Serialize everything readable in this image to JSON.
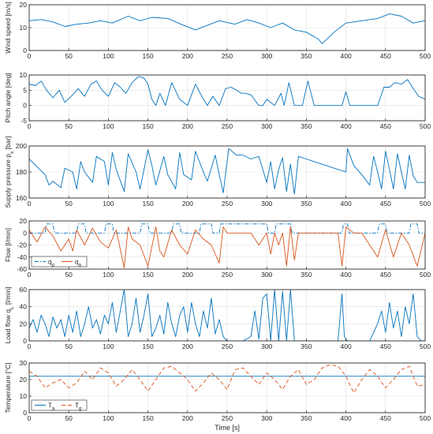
{
  "chart_data": [
    {
      "type": "line",
      "ylabel": "Wind speed [m/s]",
      "xlim": [
        0,
        500
      ],
      "ylim": [
        0,
        20
      ],
      "xticks": [
        0,
        50,
        100,
        150,
        200,
        250,
        300,
        350,
        400,
        450,
        500
      ],
      "yticks": [
        0,
        10,
        20
      ],
      "grid": true,
      "series": [
        {
          "color": "#0072BD",
          "style": "solid",
          "x": [
            0,
            15,
            30,
            45,
            60,
            75,
            90,
            105,
            125,
            140,
            155,
            175,
            195,
            210,
            225,
            240,
            260,
            275,
            290,
            305,
            320,
            335,
            350,
            365,
            370,
            385,
            400,
            420,
            440,
            455,
            470,
            485,
            500
          ],
          "y": [
            13,
            13.5,
            12.5,
            10.5,
            11.5,
            12,
            13,
            12,
            15,
            13,
            14.5,
            14,
            11,
            9,
            11,
            13,
            11.5,
            13.5,
            12,
            10,
            12,
            9,
            8,
            5,
            3,
            8,
            12,
            13,
            14,
            16,
            15,
            12,
            13
          ]
        }
      ]
    },
    {
      "type": "line",
      "ylabel": "Pitch angle [deg]",
      "xlim": [
        0,
        500
      ],
      "ylim": [
        -5,
        10
      ],
      "xticks": [
        0,
        50,
        100,
        150,
        200,
        250,
        300,
        350,
        400,
        450,
        500
      ],
      "yticks": [
        -5,
        0,
        5,
        10
      ],
      "grid": true,
      "series": [
        {
          "color": "#0072BD",
          "style": "solid",
          "x": [
            0,
            8,
            15,
            22,
            30,
            38,
            45,
            55,
            62,
            70,
            78,
            85,
            92,
            100,
            108,
            115,
            122,
            130,
            138,
            145,
            150,
            155,
            160,
            165,
            172,
            180,
            190,
            200,
            210,
            218,
            225,
            232,
            240,
            248,
            255,
            262,
            268,
            272,
            280,
            290,
            295,
            300,
            310,
            318,
            322,
            328,
            335,
            340,
            345,
            352,
            360,
            370,
            380,
            390,
            395,
            400,
            405,
            415,
            440,
            448,
            455,
            462,
            470,
            478,
            485,
            492,
            500
          ],
          "y": [
            7,
            6.5,
            8,
            5,
            2.5,
            5,
            1,
            3.5,
            5.5,
            3,
            7,
            8,
            5,
            3,
            7.5,
            6,
            4,
            7.5,
            9.5,
            9,
            7,
            2,
            0,
            4,
            0,
            7.5,
            2,
            0,
            7,
            3,
            0,
            3,
            0,
            5.5,
            6,
            5,
            4,
            4,
            3.5,
            0,
            0,
            2,
            0,
            4,
            0,
            7.5,
            0,
            0,
            0,
            8,
            0,
            0,
            0,
            0,
            0,
            4.5,
            0,
            0,
            0,
            6,
            6,
            7.5,
            7,
            8.5,
            5.5,
            3,
            2
          ]
        }
      ]
    },
    {
      "type": "line",
      "ylabel": "Supply pressure p_s [bar]",
      "xlim": [
        0,
        500
      ],
      "ylim": [
        160,
        200
      ],
      "xticks": [
        0,
        50,
        100,
        150,
        200,
        250,
        300,
        350,
        400,
        450,
        500
      ],
      "yticks": [
        160,
        180,
        200
      ],
      "grid": true,
      "series": [
        {
          "color": "#0072BD",
          "style": "solid",
          "x": [
            0,
            10,
            20,
            25,
            30,
            40,
            45,
            55,
            60,
            65,
            70,
            80,
            85,
            95,
            100,
            105,
            110,
            120,
            125,
            135,
            140,
            150,
            155,
            160,
            170,
            175,
            185,
            190,
            195,
            205,
            210,
            220,
            225,
            235,
            240,
            245,
            252,
            262,
            270,
            280,
            290,
            300,
            305,
            310,
            315,
            320,
            325,
            330,
            335,
            340,
            350,
            360,
            380,
            400,
            402,
            410,
            420,
            430,
            435,
            440,
            445,
            450,
            455,
            460,
            465,
            470,
            475,
            480,
            485,
            490,
            500
          ],
          "y": [
            190,
            184,
            178,
            170,
            173,
            168,
            183,
            180,
            167,
            188,
            180,
            172,
            192,
            188,
            170,
            195,
            182,
            165,
            194,
            180,
            167,
            197,
            185,
            170,
            192,
            178,
            167,
            195,
            178,
            174,
            196,
            180,
            173,
            193,
            178,
            164,
            198,
            193,
            193,
            190,
            192,
            172,
            188,
            167,
            182,
            191,
            165,
            186,
            163,
            192,
            190,
            188,
            184,
            180,
            198,
            185,
            178,
            170,
            192,
            180,
            167,
            196,
            182,
            167,
            194,
            180,
            167,
            193,
            177,
            172,
            172
          ]
        }
      ]
    },
    {
      "type": "line",
      "ylabel": "Flow [l/min]",
      "xlim": [
        0,
        500
      ],
      "ylim": [
        -60,
        20
      ],
      "xticks": [
        0,
        50,
        100,
        150,
        200,
        250,
        300,
        350,
        400,
        450,
        500
      ],
      "yticks": [
        -60,
        -40,
        -20,
        0,
        20
      ],
      "grid": true,
      "legend": {
        "position": "bottom-left",
        "entries": [
          "q_p",
          "q_a"
        ]
      },
      "series": [
        {
          "name": "q_p",
          "color": "#0072BD",
          "style": "dashdot",
          "x": [
            0,
            20,
            22,
            30,
            32,
            60,
            62,
            70,
            72,
            95,
            97,
            105,
            107,
            140,
            142,
            150,
            152,
            180,
            182,
            190,
            192,
            215,
            217,
            230,
            232,
            240,
            242,
            300,
            302,
            310,
            312,
            330,
            332,
            395,
            397,
            402,
            404,
            440,
            442,
            450,
            452,
            480,
            482,
            490,
            492,
            500
          ],
          "y": [
            0,
            0,
            15,
            15,
            0,
            0,
            15,
            15,
            0,
            0,
            15,
            15,
            0,
            0,
            15,
            15,
            0,
            0,
            15,
            15,
            0,
            0,
            15,
            15,
            0,
            0,
            15,
            15,
            0,
            0,
            15,
            15,
            0,
            0,
            15,
            15,
            0,
            0,
            15,
            15,
            0,
            0,
            15,
            15,
            0,
            0
          ]
        },
        {
          "name": "q_a",
          "color": "#D95319",
          "style": "solid",
          "x": [
            0,
            10,
            20,
            30,
            40,
            50,
            55,
            60,
            70,
            80,
            90,
            100,
            110,
            120,
            125,
            130,
            140,
            150,
            160,
            165,
            170,
            180,
            190,
            200,
            210,
            220,
            230,
            240,
            245,
            250,
            255,
            260,
            270,
            280,
            290,
            300,
            305,
            310,
            315,
            320,
            325,
            330,
            335,
            340,
            350,
            360,
            370,
            380,
            390,
            395,
            400,
            410,
            420,
            430,
            440,
            450,
            460,
            470,
            480,
            490,
            500
          ],
          "y": [
            5,
            -15,
            10,
            -5,
            -30,
            -10,
            -30,
            5,
            -20,
            8,
            -15,
            -25,
            5,
            -58,
            10,
            -10,
            -20,
            -55,
            10,
            -30,
            -40,
            5,
            -20,
            -35,
            5,
            -10,
            -20,
            -50,
            10,
            0,
            0,
            0,
            0,
            0,
            -20,
            0,
            -35,
            0,
            -20,
            0,
            -55,
            10,
            -45,
            0,
            0,
            0,
            0,
            0,
            0,
            -55,
            10,
            0,
            0,
            -20,
            -40,
            5,
            -40,
            0,
            -20,
            -55,
            0
          ]
        }
      ]
    },
    {
      "type": "line",
      "ylabel": "Load flow q_L [l/min]",
      "xlim": [
        0,
        500
      ],
      "ylim": [
        0,
        60
      ],
      "xticks": [
        0,
        50,
        100,
        150,
        200,
        250,
        300,
        350,
        400,
        450,
        500
      ],
      "yticks": [
        0,
        20,
        40,
        60
      ],
      "grid": true,
      "series": [
        {
          "color": "#0072BD",
          "style": "solid",
          "x": [
            0,
            5,
            10,
            15,
            20,
            25,
            30,
            35,
            40,
            45,
            50,
            55,
            60,
            65,
            70,
            75,
            80,
            85,
            90,
            95,
            100,
            105,
            110,
            115,
            120,
            125,
            130,
            135,
            140,
            145,
            150,
            155,
            160,
            165,
            170,
            175,
            180,
            185,
            190,
            195,
            200,
            205,
            210,
            215,
            220,
            225,
            230,
            235,
            240,
            245,
            250,
            260,
            270,
            280,
            285,
            290,
            295,
            300,
            305,
            310,
            315,
            320,
            325,
            330,
            335,
            340,
            345,
            350,
            360,
            370,
            380,
            390,
            395,
            398,
            402,
            405,
            410,
            420,
            430,
            440,
            445,
            450,
            455,
            460,
            465,
            470,
            475,
            480,
            485,
            490,
            495,
            500
          ],
          "y": [
            15,
            25,
            10,
            30,
            20,
            5,
            28,
            15,
            25,
            5,
            30,
            10,
            35,
            5,
            20,
            40,
            15,
            25,
            8,
            30,
            20,
            45,
            10,
            35,
            60,
            5,
            20,
            50,
            10,
            30,
            55,
            5,
            15,
            30,
            8,
            45,
            20,
            5,
            30,
            40,
            10,
            45,
            20,
            5,
            35,
            15,
            50,
            8,
            25,
            5,
            0,
            0,
            0,
            5,
            35,
            2,
            50,
            55,
            0,
            60,
            0,
            58,
            0,
            60,
            0,
            0,
            0,
            0,
            0,
            0,
            0,
            0,
            55,
            5,
            0,
            0,
            0,
            0,
            0,
            20,
            35,
            10,
            45,
            15,
            35,
            5,
            40,
            20,
            55,
            5,
            0,
            0
          ]
        }
      ]
    },
    {
      "type": "line",
      "ylabel": "Temperature [°C]",
      "xlabel": "Time [s]",
      "xlim": [
        0,
        500
      ],
      "ylim": [
        0,
        30
      ],
      "xticks": [
        0,
        50,
        100,
        150,
        200,
        250,
        300,
        350,
        400,
        450,
        500
      ],
      "yticks": [
        0,
        10,
        20,
        30
      ],
      "grid": true,
      "legend": {
        "position": "bottom-left",
        "entries": [
          "T_a",
          "T_g"
        ]
      },
      "series": [
        {
          "name": "T_a",
          "color": "#0072BD",
          "style": "solid",
          "x": [
            0,
            500
          ],
          "y": [
            22,
            22
          ]
        },
        {
          "name": "T_g",
          "color": "#D95319",
          "style": "dashed",
          "x": [
            0,
            10,
            20,
            30,
            40,
            50,
            60,
            70,
            80,
            90,
            100,
            110,
            120,
            130,
            140,
            150,
            160,
            170,
            180,
            190,
            200,
            210,
            220,
            230,
            240,
            250,
            260,
            270,
            280,
            290,
            300,
            310,
            320,
            330,
            340,
            350,
            360,
            370,
            380,
            390,
            400,
            410,
            420,
            430,
            440,
            450,
            460,
            470,
            480,
            490,
            500
          ],
          "y": [
            25,
            22,
            15,
            18,
            20,
            15,
            18,
            25,
            20,
            27,
            24,
            16,
            20,
            26,
            20,
            13,
            20,
            27,
            28,
            24,
            20,
            13,
            18,
            24,
            20,
            14,
            26,
            27,
            22,
            17,
            24,
            20,
            14,
            22,
            26,
            17,
            20,
            27,
            29,
            28,
            22,
            12,
            20,
            26,
            22,
            15,
            20,
            26,
            28,
            16,
            17
          ]
        }
      ]
    }
  ]
}
